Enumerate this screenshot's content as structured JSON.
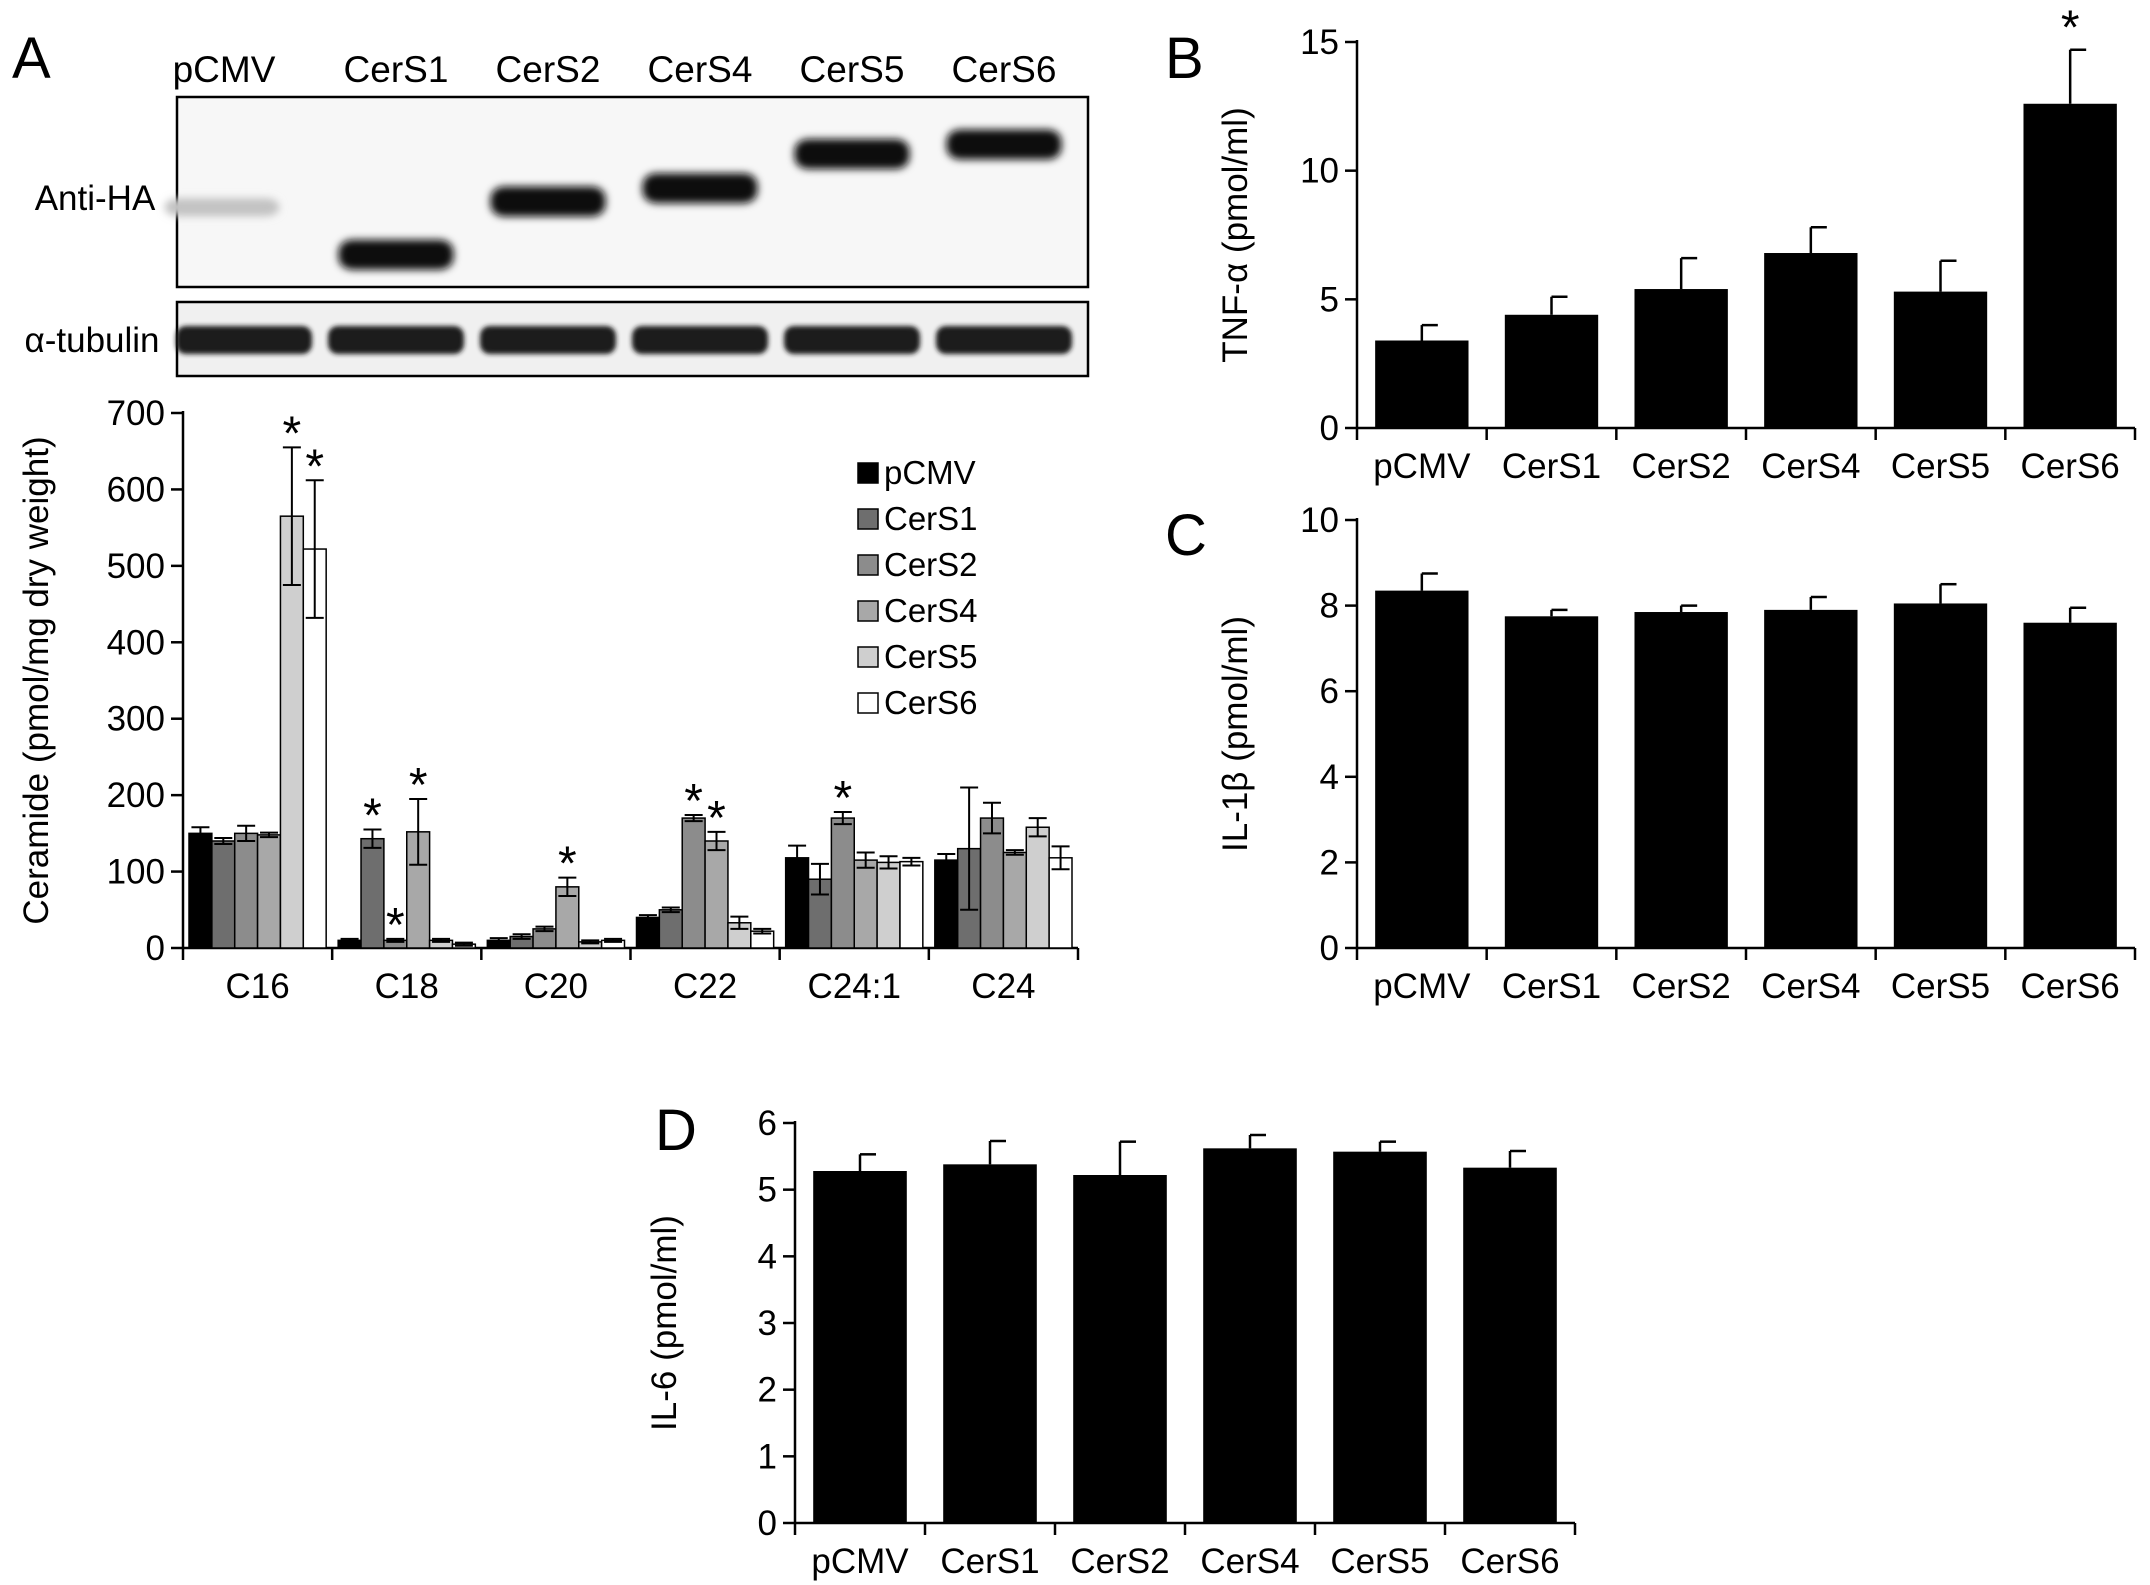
{
  "panels": {
    "A": "A",
    "B": "B",
    "C": "C",
    "D": "D"
  },
  "blot": {
    "lanes": [
      "pCMV",
      "CerS1",
      "CerS2",
      "CerS4",
      "CerS5",
      "CerS6"
    ],
    "rows": [
      {
        "label": "Anti-HA",
        "band_intensity": [
          0.25,
          1,
          1,
          1,
          1,
          1
        ],
        "band_level": [
          0.58,
          0.83,
          0.55,
          0.48,
          0.3,
          0.25
        ]
      },
      {
        "label": "α-tubulin",
        "band_intensity": [
          1,
          1,
          1,
          1,
          1,
          1
        ]
      }
    ]
  },
  "colors": {
    "pCMV": "#000000",
    "CerS1": "#6e6e6e",
    "CerS2": "#8c8c8c",
    "CerS4": "#a8a8a8",
    "CerS5": "#cfcfcf",
    "CerS6": "#ffffff",
    "bars_BCD": "#000000"
  },
  "chart_data": [
    {
      "panel": "A",
      "type": "bar",
      "ylabel": "Ceramide (pmol/mg dry weight)",
      "ylim": [
        0,
        700
      ],
      "yticks": [
        0,
        100,
        200,
        300,
        400,
        500,
        600,
        700
      ],
      "categories": [
        "C16",
        "C18",
        "C20",
        "C22",
        "C24:1",
        "C24"
      ],
      "legend_position": "top-right",
      "series": [
        {
          "name": "pCMV",
          "values": [
            150,
            10,
            10,
            40,
            118,
            115
          ],
          "errors": [
            8,
            2,
            3,
            3,
            16,
            8
          ],
          "significant": [
            false,
            false,
            false,
            false,
            false,
            false
          ]
        },
        {
          "name": "CerS1",
          "values": [
            140,
            143,
            15,
            50,
            90,
            130
          ],
          "errors": [
            4,
            12,
            3,
            3,
            20,
            80
          ],
          "significant": [
            false,
            true,
            false,
            false,
            false,
            false
          ]
        },
        {
          "name": "CerS2",
          "values": [
            150,
            10,
            25,
            170,
            170,
            170
          ],
          "errors": [
            10,
            2,
            3,
            4,
            8,
            20
          ],
          "significant": [
            false,
            true,
            false,
            true,
            true,
            false
          ]
        },
        {
          "name": "CerS4",
          "values": [
            148,
            152,
            80,
            140,
            115,
            125
          ],
          "errors": [
            3,
            43,
            12,
            12,
            10,
            3
          ],
          "significant": [
            false,
            true,
            true,
            true,
            false,
            false
          ]
        },
        {
          "name": "CerS5",
          "values": [
            565,
            10,
            8,
            33,
            112,
            158
          ],
          "errors": [
            90,
            2,
            2,
            8,
            8,
            12
          ],
          "significant": [
            true,
            false,
            false,
            false,
            false,
            false
          ]
        },
        {
          "name": "CerS6",
          "values": [
            522,
            5,
            10,
            22,
            113,
            118
          ],
          "errors": [
            90,
            2,
            2,
            3,
            5,
            15
          ],
          "significant": [
            true,
            false,
            false,
            false,
            false,
            false
          ]
        }
      ]
    },
    {
      "panel": "B",
      "type": "bar",
      "ylabel": "TNF-α (pmol/ml)",
      "ylim": [
        0,
        15
      ],
      "yticks": [
        0,
        5,
        10,
        15
      ],
      "categories": [
        "pCMV",
        "CerS1",
        "CerS2",
        "CerS4",
        "CerS5",
        "CerS6"
      ],
      "values": [
        3.4,
        4.4,
        5.4,
        6.8,
        5.3,
        12.6
      ],
      "errors": [
        0.6,
        0.7,
        1.2,
        1.0,
        1.2,
        2.1
      ],
      "significant": [
        false,
        false,
        false,
        false,
        false,
        true
      ]
    },
    {
      "panel": "C",
      "type": "bar",
      "ylabel": "IL-1β (pmol/ml)",
      "ylim": [
        0,
        10
      ],
      "yticks": [
        0,
        2,
        4,
        6,
        8,
        10
      ],
      "categories": [
        "pCMV",
        "CerS1",
        "CerS2",
        "CerS4",
        "CerS5",
        "CerS6"
      ],
      "values": [
        8.35,
        7.75,
        7.85,
        7.9,
        8.05,
        7.6
      ],
      "errors": [
        0.4,
        0.15,
        0.15,
        0.3,
        0.45,
        0.35
      ],
      "significant": [
        false,
        false,
        false,
        false,
        false,
        false
      ]
    },
    {
      "panel": "D",
      "type": "bar",
      "ylabel": "IL-6 (pmol/ml)",
      "ylim": [
        0,
        6
      ],
      "yticks": [
        0,
        1,
        2,
        3,
        4,
        5,
        6
      ],
      "categories": [
        "pCMV",
        "CerS1",
        "CerS2",
        "CerS4",
        "CerS5",
        "CerS6"
      ],
      "values": [
        5.28,
        5.38,
        5.22,
        5.62,
        5.57,
        5.33
      ],
      "errors": [
        0.25,
        0.35,
        0.5,
        0.2,
        0.15,
        0.25
      ],
      "significant": [
        false,
        false,
        false,
        false,
        false,
        false
      ]
    }
  ],
  "significance_marker": "*"
}
